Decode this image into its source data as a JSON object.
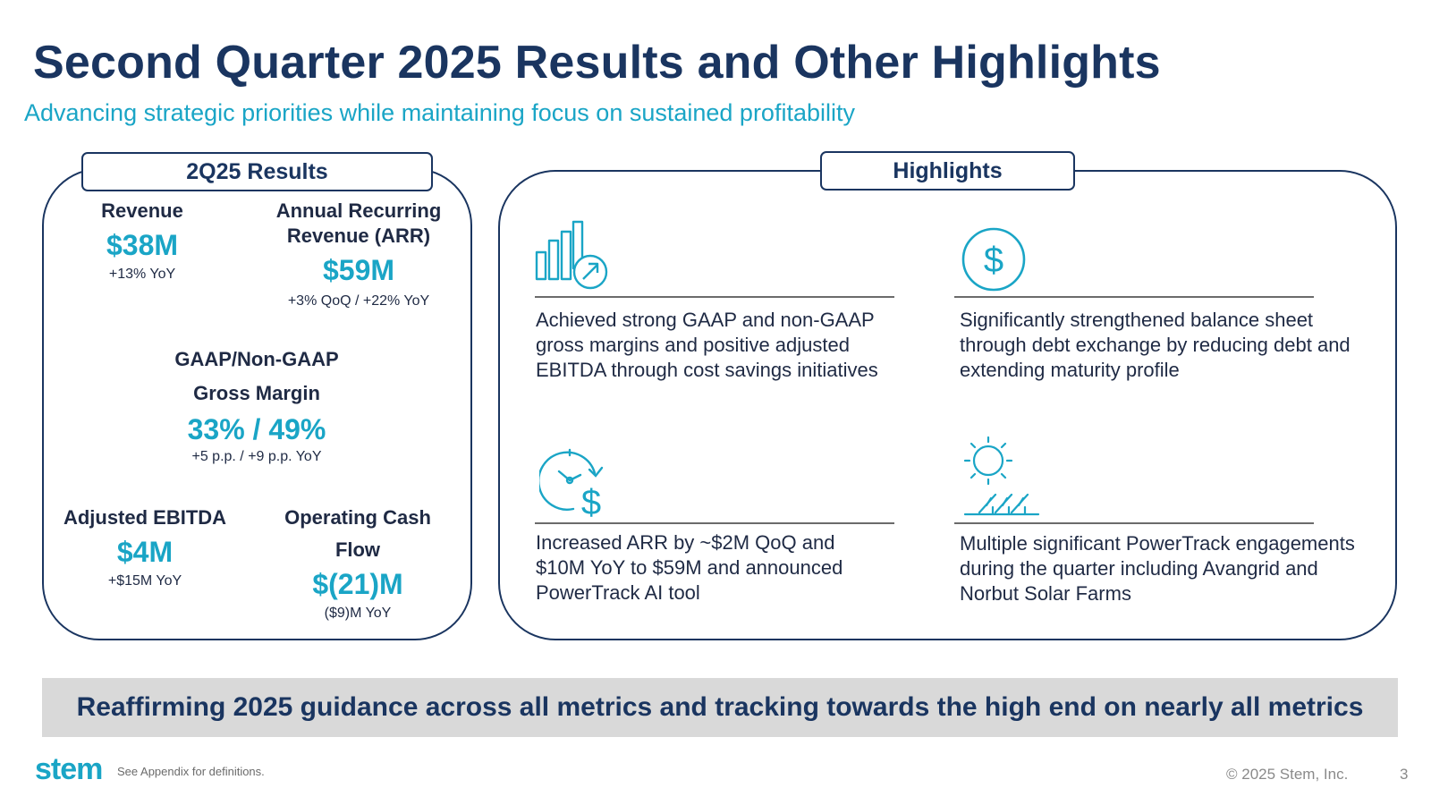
{
  "header": {
    "title": "Second Quarter 2025 Results and Other Highlights",
    "subtitle": "Advancing strategic priorities while maintaining focus on sustained profitability"
  },
  "results": {
    "heading": "2Q25 Results",
    "revenue": {
      "label": "Revenue",
      "value": "$38M",
      "change": "+13% YoY"
    },
    "arr": {
      "label_line1": "Annual Recurring",
      "label_line2": "Revenue (ARR)",
      "value": "$59M",
      "change": "+3% QoQ / +22% YoY"
    },
    "gross_margin": {
      "label_line1": "GAAP/Non-GAAP",
      "label_line2": "Gross Margin",
      "value": "33% / 49%",
      "change": "+5 p.p. / +9 p.p. YoY"
    },
    "ebitda": {
      "label": "Adjusted EBITDA",
      "value": "$4M",
      "change": "+$15M YoY"
    },
    "cash_flow": {
      "label_line1": "Operating Cash",
      "label_line2": "Flow",
      "value": "$(21)M",
      "change": "($9)M YoY"
    }
  },
  "highlights": {
    "heading": "Highlights",
    "items": [
      {
        "icon": "bar-chart-growth-icon",
        "text": "Achieved strong GAAP and non-GAAP gross margins and positive adjusted EBITDA through cost savings initiatives"
      },
      {
        "icon": "dollar-circle-icon",
        "text": "Significantly strengthened balance sheet through debt exchange by reducing debt and extending maturity profile"
      },
      {
        "icon": "clock-dollar-icon",
        "text": "Increased ARR by ~$2M QoQ and $10M YoY to $59M and announced PowerTrack AI tool"
      },
      {
        "icon": "solar-panels-sun-icon",
        "text": "Multiple significant PowerTrack engagements during the quarter including Avangrid and Norbut Solar Farms"
      }
    ]
  },
  "banner": {
    "text": "Reaffirming 2025 guidance across all metrics and tracking towards the high end on nearly all metrics"
  },
  "footer": {
    "logo": "stem",
    "footnote": "See Appendix for definitions.",
    "copyright": "© 2025 Stem, Inc.",
    "page_number": "3"
  },
  "colors": {
    "navy": "#1a3560",
    "teal": "#1aa5c6",
    "banner_bg": "#d9d9d9"
  }
}
